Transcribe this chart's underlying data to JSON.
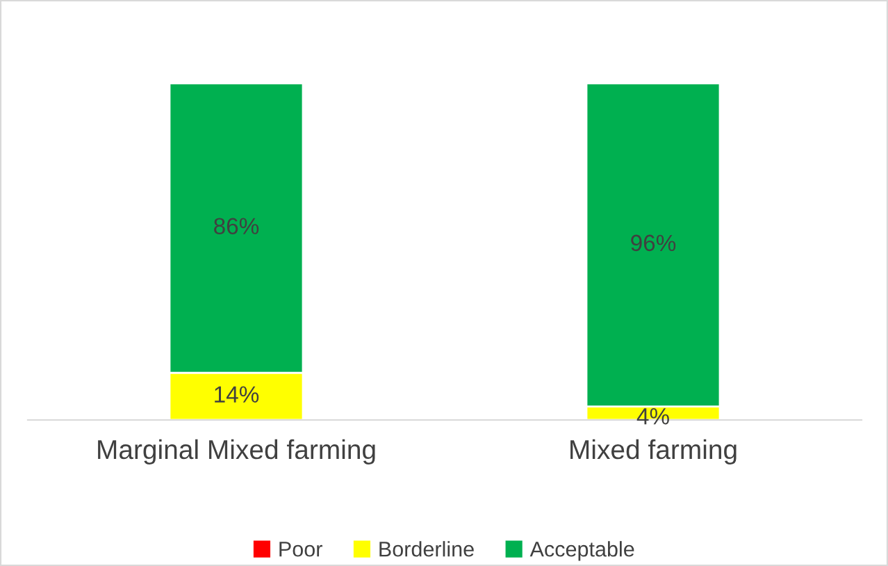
{
  "chart_data": {
    "type": "bar",
    "stacked": true,
    "legend": "bottom",
    "grid": false,
    "categories": [
      "Marginal Mixed farming",
      "Mixed farming"
    ],
    "series": [
      {
        "name": "Poor",
        "color": "#ff0000",
        "values": [
          0,
          0
        ],
        "value_labels": [
          null,
          null
        ]
      },
      {
        "name": "Borderline",
        "color": "#ffff00",
        "values": [
          14,
          4
        ],
        "value_labels": [
          "14%",
          "4%"
        ]
      },
      {
        "name": "Acceptable",
        "color": "#00b050",
        "values": [
          86,
          96
        ],
        "value_labels": [
          "86%",
          "96%"
        ]
      }
    ]
  }
}
